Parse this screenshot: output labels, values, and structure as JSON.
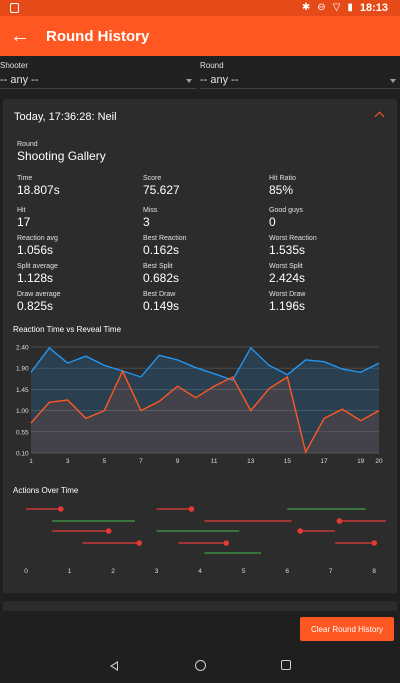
{
  "status_bar": {
    "time": "18:13",
    "icons": [
      "notification-icon",
      "bluetooth-icon",
      "dnd-icon",
      "wifi-icon",
      "battery-icon"
    ]
  },
  "app_bar": {
    "title": "Round History",
    "back_icon": "arrow-left-icon"
  },
  "filters": {
    "shooter": {
      "label": "Shooter",
      "value": "-- any --"
    },
    "round": {
      "label": "Round",
      "value": "-- any --"
    }
  },
  "round_card": {
    "title": "Today, 17:36:28: Neil",
    "round": {
      "label": "Round",
      "value": "Shooting Gallery"
    },
    "stats": {
      "time": {
        "label": "Time",
        "value": "18.807s"
      },
      "score": {
        "label": "Score",
        "value": "75.627"
      },
      "hit_ratio": {
        "label": "Hit Ratio",
        "value": "85%"
      },
      "hit": {
        "label": "Hit",
        "value": "17"
      },
      "miss": {
        "label": "Miss",
        "value": "3"
      },
      "good_guys": {
        "label": "Good guys",
        "value": "0"
      },
      "reaction_avg": {
        "label": "Reaction avg",
        "value": "1.056s"
      },
      "best_reaction": {
        "label": "Best Reaction",
        "value": "0.162s"
      },
      "worst_reaction": {
        "label": "Worst Reaction",
        "value": "1.535s"
      },
      "split_average": {
        "label": "Split average",
        "value": "1.128s"
      },
      "best_split": {
        "label": "Best Split",
        "value": "0.682s"
      },
      "worst_split": {
        "label": "Worst Split",
        "value": "2.424s"
      },
      "draw_average": {
        "label": "Draw average",
        "value": "0.825s"
      },
      "best_draw": {
        "label": "Best Draw",
        "value": "0.149s"
      },
      "worst_draw": {
        "label": "Worst Draw",
        "value": "1.196s"
      }
    },
    "reaction_chart_title": "Reaction Time vs Reveal Time",
    "actions_chart_title": "Actions Over Time"
  },
  "chart_data": [
    {
      "type": "area",
      "title": "Reaction Time vs Reveal Time",
      "x": [
        1,
        2,
        3,
        4,
        5,
        6,
        7,
        8,
        9,
        10,
        11,
        12,
        13,
        14,
        15,
        16,
        17,
        18,
        19,
        20
      ],
      "x_tick_labels": [
        "1",
        "3",
        "5",
        "7",
        "9",
        "11",
        "13",
        "15",
        "17",
        "19",
        "20"
      ],
      "y_tick_labels": [
        "2.40",
        "1.90",
        "1.45",
        "1.00",
        "0.55",
        "0.10"
      ],
      "ylim": [
        0.1,
        2.4
      ],
      "grid": true,
      "colors": {
        "series_a": "#2196f3",
        "series_b": "#ff5722"
      },
      "series": [
        {
          "values": [
            1.85,
            2.38,
            2.05,
            2.2,
            2.0,
            1.88,
            1.75,
            2.22,
            2.12,
            1.95,
            1.82,
            1.68,
            2.38,
            2.0,
            1.8,
            2.12,
            2.08,
            1.92,
            1.85,
            2.05
          ]
        },
        {
          "values": [
            0.75,
            1.2,
            1.25,
            0.85,
            1.02,
            1.88,
            1.02,
            1.22,
            1.55,
            1.3,
            1.55,
            1.75,
            1.02,
            1.5,
            1.75,
            0.12,
            0.85,
            1.05,
            0.8,
            1.02
          ]
        }
      ]
    },
    {
      "type": "scatter",
      "title": "Actions Over Time",
      "x_tick_labels": [
        "0",
        "1",
        "2",
        "3",
        "4",
        "5",
        "6",
        "7",
        "8"
      ],
      "xlim": [
        0,
        8.5
      ],
      "colors": {
        "red": "#e53935",
        "green": "#43a047"
      },
      "red_segments": [
        {
          "row": 0,
          "start": 0.0,
          "end": 0.8
        },
        {
          "row": 0,
          "start": 3.0,
          "end": 3.8
        },
        {
          "row": 1,
          "start": 4.1,
          "end": 6.1
        },
        {
          "row": 1,
          "start": 7.2,
          "end": 8.5
        },
        {
          "row": 2,
          "start": 0.6,
          "end": 1.9
        },
        {
          "row": 2,
          "start": 6.3,
          "end": 7.1
        },
        {
          "row": 3,
          "start": 1.3,
          "end": 2.6
        },
        {
          "row": 3,
          "start": 3.5,
          "end": 4.6
        },
        {
          "row": 3,
          "start": 7.1,
          "end": 8.0
        }
      ],
      "green_segments": [
        {
          "row": 0,
          "start": 6.0,
          "end": 7.8
        },
        {
          "row": 1,
          "start": 0.6,
          "end": 2.5
        },
        {
          "row": 2,
          "start": 3.0,
          "end": 4.9
        },
        {
          "row": 4,
          "start": 4.1,
          "end": 5.4
        }
      ],
      "markers": [
        {
          "row": 0,
          "x": 0.8
        },
        {
          "row": 0,
          "x": 3.8
        },
        {
          "row": 1,
          "x": 7.2
        },
        {
          "row": 2,
          "x": 1.9
        },
        {
          "row": 2,
          "x": 6.3
        },
        {
          "row": 3,
          "x": 2.6
        },
        {
          "row": 3,
          "x": 4.6
        },
        {
          "row": 3,
          "x": 8.0
        }
      ]
    }
  ],
  "footer": {
    "clear_button": "Clear Round History"
  },
  "nav": {
    "back": "nav-back-icon",
    "home": "nav-home-icon",
    "recents": "nav-recents-icon"
  }
}
